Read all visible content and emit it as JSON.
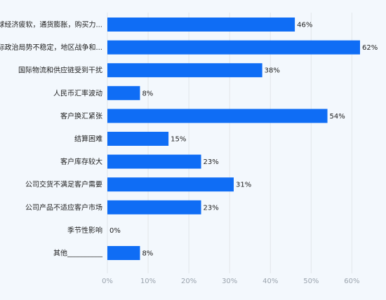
{
  "chart_data": {
    "type": "bar",
    "orientation": "horizontal",
    "categories": [
      "全球经济疲软，通货膨胀，购买力...",
      "国际政治局势不稳定，地区战争和...",
      "国际物流和供应链受到干扰",
      "人民币汇率波动",
      "客户换汇紧张",
      "结算困难",
      "客户库存较大",
      "公司交货不满足客户需要",
      "公司产品不适应客户市场",
      "季节性影响",
      "其他__________"
    ],
    "values": [
      46,
      62,
      38,
      8,
      54,
      15,
      23,
      31,
      23,
      0,
      8
    ],
    "value_labels": [
      "46%",
      "62%",
      "38%",
      "8%",
      "54%",
      "15%",
      "23%",
      "31%",
      "23%",
      "0%",
      "8%"
    ],
    "xlim": [
      0,
      62
    ],
    "x_ticks": [
      0,
      10,
      20,
      30,
      40,
      50,
      60
    ],
    "x_tick_labels": [
      "0%",
      "10%",
      "20%",
      "30%",
      "40%",
      "50%",
      "60%"
    ],
    "grid": true,
    "legend": "none",
    "bar_color": "#0f6df5"
  }
}
